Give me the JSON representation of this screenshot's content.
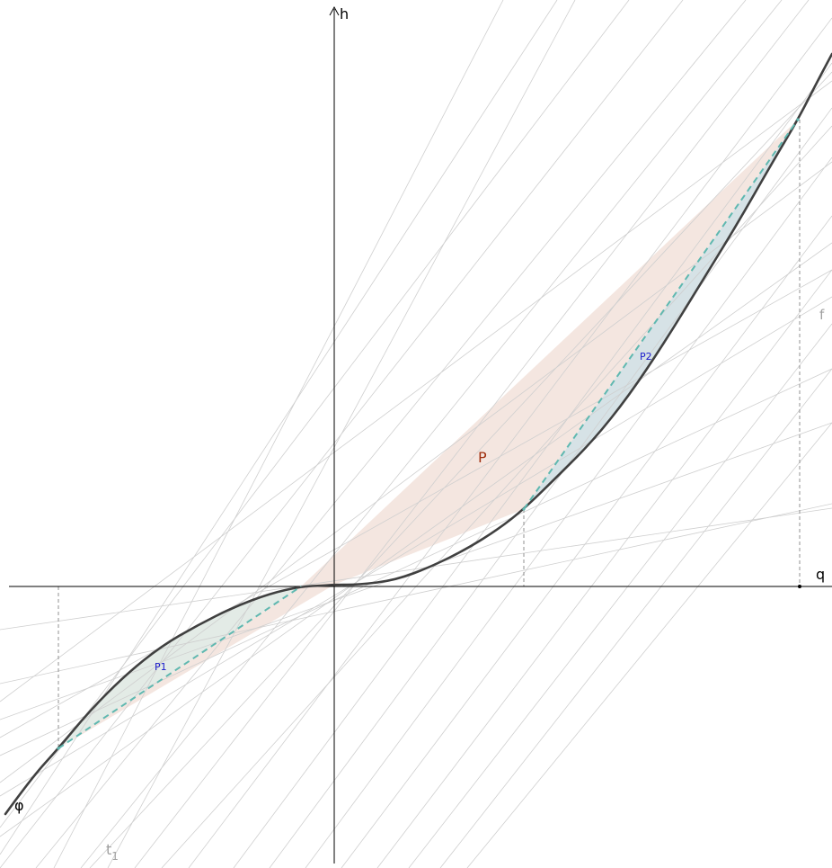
{
  "labels": {
    "axis_x": "q",
    "axis_y": "h",
    "curve": "φ",
    "line_f": "f",
    "tangent": "t",
    "tangent_sub": "1",
    "region_big": "P",
    "region_left": "P1",
    "region_right": "P2"
  },
  "colors": {
    "axis": "#000000",
    "curve": "#404040",
    "grid_lines": "#c8c8c8",
    "label_gray": "#a0a0a0",
    "region_big_fill": "#f4e6e0",
    "region_big_label": "#a03010",
    "region_small_fill_left": "#e3ebe6",
    "region_small_fill_right": "#d6e2e6",
    "chord": "#5fb8b0",
    "region_small_label": "#1a1acc",
    "dashed_guide": "#909090"
  }
}
